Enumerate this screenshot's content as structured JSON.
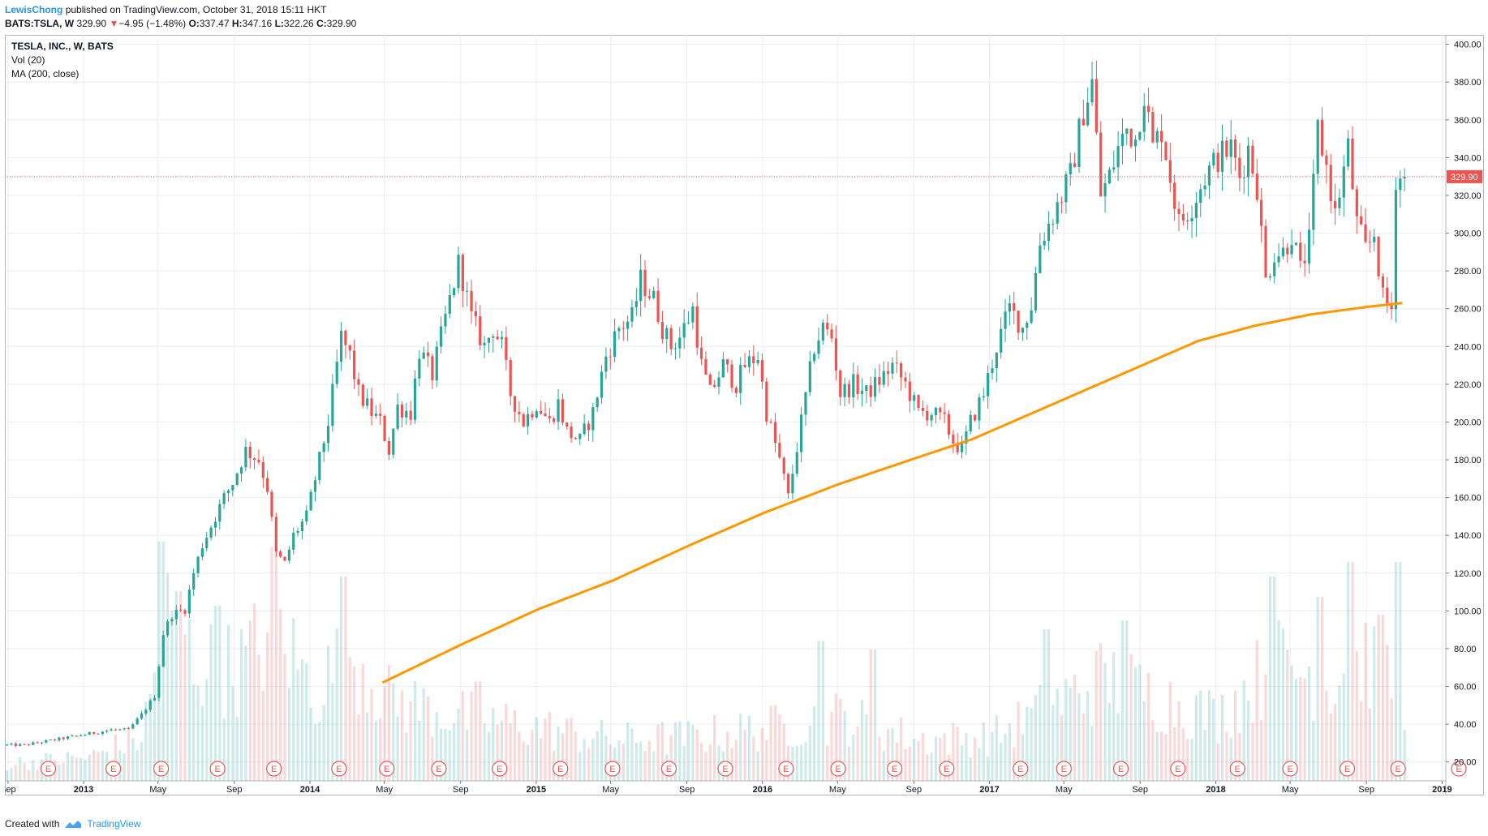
{
  "header": {
    "author": "LewisChong",
    "published_text": "published on TradingView.com, October 31, 2018 15:11 HKT",
    "symbol": "BATS:TSLA, W",
    "last": "329.90",
    "change_arrow": "▼",
    "change": "−4.95 (−1.48%)",
    "o_label": "O:",
    "o_value": "337.47",
    "h_label": "H:",
    "h_value": "347.16",
    "l_label": "L:",
    "l_value": "322.26",
    "c_label": "C:",
    "c_value": "329.90"
  },
  "legend": {
    "line1": "TESLA, INC., W, BATS",
    "line2": "Vol (20)",
    "line3": "MA (200, close)"
  },
  "footer": {
    "created_with": "Created with",
    "brand": "TradingView"
  },
  "colors": {
    "up": "#26a69a",
    "down": "#ef5350",
    "ma": "#ff9800",
    "grid": "#e9eef3",
    "price_tag": "#ef5350"
  },
  "event_marker_label": "E",
  "chart_data": {
    "type": "candlestick",
    "timeframe": "weekly",
    "x_range": [
      "2012-08-27",
      "2019-01-07"
    ],
    "ylim": [
      10,
      405
    ],
    "price_axis_labels": [
      "400.00",
      "380.00",
      "360.00",
      "340.00",
      "320.00",
      "300.00",
      "280.00",
      "260.00",
      "240.00",
      "220.00",
      "200.00",
      "180.00",
      "160.00",
      "140.00",
      "120.00",
      "100.00",
      "80.00",
      "60.00",
      "40.00",
      "20.00"
    ],
    "time_axis": [
      {
        "label": "Sep",
        "date": "2012-09-01"
      },
      {
        "label": "2013",
        "date": "2013-01-01"
      },
      {
        "label": "May",
        "date": "2013-05-01"
      },
      {
        "label": "Sep",
        "date": "2013-09-01"
      },
      {
        "label": "2014",
        "date": "2014-01-01"
      },
      {
        "label": "May",
        "date": "2014-05-01"
      },
      {
        "label": "Sep",
        "date": "2014-09-01"
      },
      {
        "label": "2015",
        "date": "2015-01-01"
      },
      {
        "label": "May",
        "date": "2015-05-01"
      },
      {
        "label": "Sep",
        "date": "2015-09-01"
      },
      {
        "label": "2016",
        "date": "2016-01-01"
      },
      {
        "label": "May",
        "date": "2016-05-01"
      },
      {
        "label": "Sep",
        "date": "2016-09-01"
      },
      {
        "label": "2017",
        "date": "2017-01-01"
      },
      {
        "label": "May",
        "date": "2017-05-01"
      },
      {
        "label": "Sep",
        "date": "2017-09-01"
      },
      {
        "label": "2018",
        "date": "2018-01-01"
      },
      {
        "label": "May",
        "date": "2018-05-01"
      },
      {
        "label": "Sep",
        "date": "2018-09-01"
      },
      {
        "label": "2019",
        "date": "2019-01-01"
      }
    ],
    "last_price": 329.9,
    "last_price_label": "329.90",
    "price_anchors": [
      [
        "2012-08-27",
        29
      ],
      [
        "2012-10-01",
        29
      ],
      [
        "2012-11-05",
        31
      ],
      [
        "2012-12-10",
        33
      ],
      [
        "2013-01-14",
        35
      ],
      [
        "2013-02-18",
        37
      ],
      [
        "2013-03-18",
        37
      ],
      [
        "2013-04-08",
        45
      ],
      [
        "2013-04-29",
        55
      ],
      [
        "2013-05-13",
        88
      ],
      [
        "2013-05-27",
        98
      ],
      [
        "2013-06-17",
        101
      ],
      [
        "2013-07-01",
        120
      ],
      [
        "2013-07-15",
        135
      ],
      [
        "2013-08-05",
        150
      ],
      [
        "2013-08-19",
        160
      ],
      [
        "2013-09-02",
        168
      ],
      [
        "2013-09-23",
        185
      ],
      [
        "2013-10-14",
        180
      ],
      [
        "2013-10-28",
        165
      ],
      [
        "2013-11-11",
        130
      ],
      [
        "2013-11-25",
        125
      ],
      [
        "2013-12-09",
        140
      ],
      [
        "2013-12-30",
        150
      ],
      [
        "2014-01-13",
        170
      ],
      [
        "2014-02-03",
        200
      ],
      [
        "2014-02-24",
        245
      ],
      [
        "2014-03-10",
        235
      ],
      [
        "2014-03-24",
        215
      ],
      [
        "2014-04-14",
        205
      ],
      [
        "2014-04-28",
        200
      ],
      [
        "2014-05-12",
        185
      ],
      [
        "2014-05-26",
        208
      ],
      [
        "2014-06-16",
        205
      ],
      [
        "2014-06-30",
        238
      ],
      [
        "2014-07-21",
        225
      ],
      [
        "2014-08-11",
        255
      ],
      [
        "2014-09-02",
        285
      ],
      [
        "2014-09-22",
        255
      ],
      [
        "2014-10-13",
        240
      ],
      [
        "2014-10-27",
        250
      ],
      [
        "2014-11-10",
        240
      ],
      [
        "2014-11-24",
        215
      ],
      [
        "2014-12-15",
        200
      ],
      [
        "2015-01-05",
        210
      ],
      [
        "2015-01-26",
        200
      ],
      [
        "2015-02-09",
        210
      ],
      [
        "2015-02-23",
        195
      ],
      [
        "2015-03-16",
        190
      ],
      [
        "2015-04-06",
        205
      ],
      [
        "2015-04-27",
        235
      ],
      [
        "2015-05-18",
        250
      ],
      [
        "2015-06-08",
        255
      ],
      [
        "2015-06-22",
        275
      ],
      [
        "2015-07-13",
        265
      ],
      [
        "2015-07-27",
        250
      ],
      [
        "2015-08-10",
        240
      ],
      [
        "2015-08-24",
        245
      ],
      [
        "2015-09-14",
        260
      ],
      [
        "2015-09-28",
        230
      ],
      [
        "2015-10-12",
        215
      ],
      [
        "2015-11-02",
        230
      ],
      [
        "2015-11-23",
        220
      ],
      [
        "2015-12-07",
        230
      ],
      [
        "2015-12-28",
        235
      ],
      [
        "2016-01-11",
        205
      ],
      [
        "2016-02-01",
        180
      ],
      [
        "2016-02-15",
        160
      ],
      [
        "2016-03-07",
        200
      ],
      [
        "2016-03-28",
        240
      ],
      [
        "2016-04-11",
        250
      ],
      [
        "2016-04-25",
        245
      ],
      [
        "2016-05-09",
        215
      ],
      [
        "2016-05-30",
        220
      ],
      [
        "2016-06-20",
        215
      ],
      [
        "2016-07-11",
        222
      ],
      [
        "2016-08-01",
        230
      ],
      [
        "2016-08-22",
        220
      ],
      [
        "2016-09-12",
        205
      ],
      [
        "2016-10-03",
        205
      ],
      [
        "2016-10-24",
        200
      ],
      [
        "2016-11-07",
        190
      ],
      [
        "2016-11-21",
        185
      ],
      [
        "2016-12-05",
        200
      ],
      [
        "2016-12-26",
        215
      ],
      [
        "2017-01-16",
        240
      ],
      [
        "2017-02-06",
        260
      ],
      [
        "2017-02-27",
        250
      ],
      [
        "2017-03-13",
        262
      ],
      [
        "2017-03-27",
        295
      ],
      [
        "2017-04-17",
        310
      ],
      [
        "2017-05-01",
        320
      ],
      [
        "2017-05-15",
        330
      ],
      [
        "2017-06-05",
        365
      ],
      [
        "2017-06-19",
        380
      ],
      [
        "2017-07-03",
        320
      ],
      [
        "2017-07-17",
        330
      ],
      [
        "2017-07-31",
        345
      ],
      [
        "2017-08-14",
        355
      ],
      [
        "2017-08-28",
        350
      ],
      [
        "2017-09-11",
        375
      ],
      [
        "2017-09-25",
        345
      ],
      [
        "2017-10-09",
        355
      ],
      [
        "2017-10-23",
        330
      ],
      [
        "2017-11-06",
        305
      ],
      [
        "2017-11-27",
        315
      ],
      [
        "2017-12-18",
        330
      ],
      [
        "2018-01-08",
        340
      ],
      [
        "2018-01-29",
        345
      ],
      [
        "2018-02-12",
        330
      ],
      [
        "2018-02-26",
        345
      ],
      [
        "2018-03-12",
        325
      ],
      [
        "2018-03-26",
        275
      ],
      [
        "2018-04-09",
        290
      ],
      [
        "2018-04-23",
        290
      ],
      [
        "2018-05-07",
        300
      ],
      [
        "2018-05-21",
        280
      ],
      [
        "2018-06-04",
        295
      ],
      [
        "2018-06-18",
        355
      ],
      [
        "2018-07-02",
        335
      ],
      [
        "2018-07-16",
        310
      ],
      [
        "2018-08-06",
        345
      ],
      [
        "2018-08-20",
        305
      ],
      [
        "2018-09-04",
        290
      ],
      [
        "2018-09-17",
        300
      ],
      [
        "2018-10-01",
        265
      ],
      [
        "2018-10-15",
        260
      ],
      [
        "2018-10-22",
        330
      ],
      [
        "2018-10-29",
        329.9
      ]
    ],
    "ma200_anchors": [
      [
        "2014-04-28",
        62
      ],
      [
        "2014-09-01",
        82
      ],
      [
        "2015-01-05",
        101
      ],
      [
        "2015-05-04",
        116
      ],
      [
        "2015-09-07",
        135
      ],
      [
        "2016-01-04",
        152
      ],
      [
        "2016-05-02",
        167
      ],
      [
        "2016-09-05",
        181
      ],
      [
        "2016-12-05",
        191
      ],
      [
        "2017-03-06",
        204
      ],
      [
        "2017-06-05",
        217
      ],
      [
        "2017-09-04",
        230
      ],
      [
        "2017-12-04",
        243
      ],
      [
        "2018-03-05",
        251
      ],
      [
        "2018-06-04",
        257
      ],
      [
        "2018-09-03",
        261
      ],
      [
        "2018-10-29",
        263
      ]
    ],
    "volume_scale_max": 100,
    "volume_anchors": [
      [
        "2012-08-27",
        6
      ],
      [
        "2013-01-07",
        8
      ],
      [
        "2013-04-01",
        15
      ],
      [
        "2013-05-13",
        55
      ],
      [
        "2013-07-01",
        40
      ],
      [
        "2013-09-02",
        38
      ],
      [
        "2013-11-04",
        52
      ],
      [
        "2014-01-06",
        30
      ],
      [
        "2014-03-03",
        45
      ],
      [
        "2014-05-05",
        28
      ],
      [
        "2014-09-01",
        22
      ],
      [
        "2015-01-05",
        18
      ],
      [
        "2015-05-04",
        14
      ],
      [
        "2015-09-07",
        15
      ],
      [
        "2016-01-04",
        18
      ],
      [
        "2016-05-02",
        22
      ],
      [
        "2016-09-05",
        14
      ],
      [
        "2017-01-02",
        15
      ],
      [
        "2017-04-03",
        25
      ],
      [
        "2017-07-03",
        35
      ],
      [
        "2017-10-02",
        28
      ],
      [
        "2018-01-01",
        22
      ],
      [
        "2018-04-02",
        40
      ],
      [
        "2018-07-02",
        35
      ],
      [
        "2018-09-03",
        42
      ],
      [
        "2018-10-29",
        30
      ]
    ],
    "volume_spikes": [
      [
        "2013-05-06",
        82
      ],
      [
        "2013-06-03",
        65
      ],
      [
        "2013-08-05",
        60
      ],
      [
        "2013-11-04",
        80
      ],
      [
        "2014-02-24",
        70
      ],
      [
        "2014-09-29",
        34
      ],
      [
        "2016-04-04",
        48
      ],
      [
        "2016-06-27",
        45
      ],
      [
        "2017-04-03",
        52
      ],
      [
        "2017-08-07",
        55
      ],
      [
        "2018-04-02",
        70
      ],
      [
        "2018-06-18",
        63
      ],
      [
        "2018-08-06",
        75
      ],
      [
        "2018-09-24",
        57
      ],
      [
        "2018-10-22",
        75
      ]
    ],
    "earnings_events": [
      "2012-11-05",
      "2013-02-18",
      "2013-05-06",
      "2013-08-05",
      "2013-11-04",
      "2014-02-17",
      "2014-05-05",
      "2014-07-28",
      "2014-11-03",
      "2015-02-09",
      "2015-05-04",
      "2015-08-03",
      "2015-11-02",
      "2016-02-08",
      "2016-05-02",
      "2016-08-01",
      "2016-10-24",
      "2017-02-20",
      "2017-05-01",
      "2017-08-01",
      "2017-11-01",
      "2018-02-05",
      "2018-05-01",
      "2018-08-01",
      "2018-10-22",
      "2019-01-28"
    ]
  }
}
